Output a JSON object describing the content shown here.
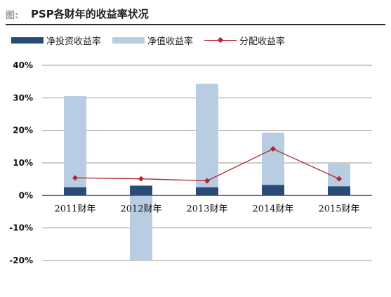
{
  "header": {
    "fig_label": "图:",
    "title": "PSP各财年的收益率状况"
  },
  "colors": {
    "net_investment": "#2a4a78",
    "net_value": "#b8cde2",
    "distribution": "#b0262a",
    "grid": "#9a9a9a"
  },
  "chart_data": {
    "type": "bar",
    "title": "PSP各财年的收益率状况",
    "categories": [
      "2011财年",
      "2012财年",
      "2013财年",
      "2014财年",
      "2015财年"
    ],
    "series": [
      {
        "name": "净投资收益率",
        "kind": "bar",
        "values": [
          2.5,
          3.0,
          2.5,
          3.2,
          2.8
        ]
      },
      {
        "name": "净值收益率",
        "kind": "bar",
        "values": [
          30.5,
          -19.8,
          34.3,
          19.3,
          9.8
        ]
      },
      {
        "name": "分配收益率",
        "kind": "line",
        "values": [
          5.4,
          5.1,
          4.5,
          14.3,
          5.1
        ]
      }
    ],
    "yticks": [
      "40%",
      "30%",
      "20%",
      "10%",
      "0%",
      "-10%",
      "-20%"
    ],
    "ylim": [
      -20,
      40
    ],
    "grid": true,
    "legend_position": "top-left"
  }
}
